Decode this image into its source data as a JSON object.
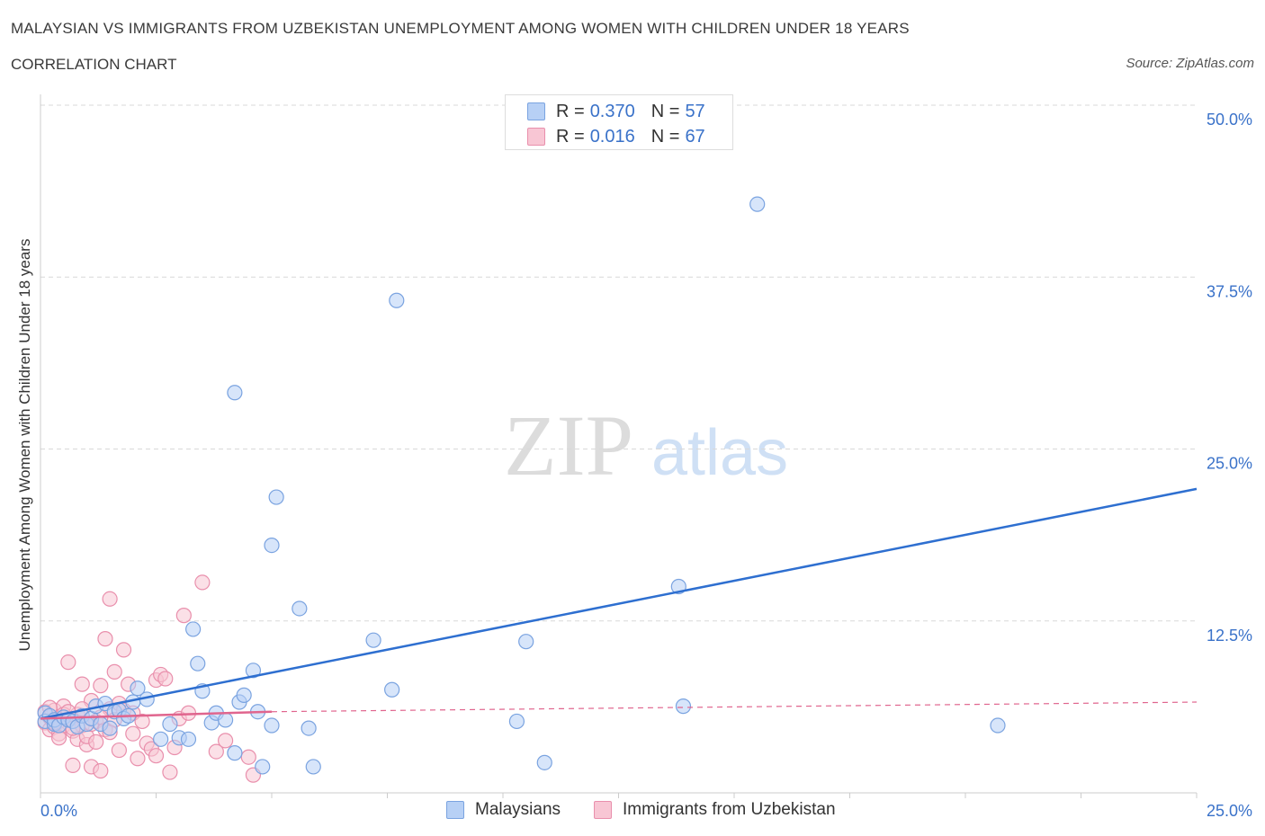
{
  "header": {
    "title": "MALAYSIAN VS IMMIGRANTS FROM UZBEKISTAN UNEMPLOYMENT AMONG WOMEN WITH CHILDREN UNDER 18 YEARS",
    "subtitle": "CORRELATION CHART",
    "source": "Source: ZipAtlas.com"
  },
  "watermark": {
    "zip": "ZIP",
    "atlas": "atlas"
  },
  "colors": {
    "blue_fill": "#b7d0f5",
    "blue_stroke": "#7aa3e0",
    "blue_line": "#2e6fd0",
    "pink_fill": "#f8c6d4",
    "pink_stroke": "#e98fac",
    "pink_line": "#e0658e",
    "axis_text": "#3a72c9",
    "grid": "#d8d8d8"
  },
  "legend_top": {
    "rows": [
      {
        "label": "R =",
        "r": "0.370",
        "n_label": "N =",
        "n": "57"
      },
      {
        "label": "R =",
        "r": "0.016",
        "n_label": "N =",
        "n": "67"
      }
    ]
  },
  "legend_bottom": [
    "Malaysians",
    "Immigrants from Uzbekistan"
  ],
  "chart_data": {
    "type": "scatter",
    "title": "MALAYSIAN VS IMMIGRANTS FROM UZBEKISTAN UNEMPLOYMENT AMONG WOMEN WITH CHILDREN UNDER 18 YEARS",
    "xlabel": "",
    "ylabel": "Unemployment Among Women with Children Under 18 years",
    "xlim": [
      0,
      25
    ],
    "ylim": [
      0,
      50
    ],
    "x_tick_labels": [
      "0.0%",
      "25.0%"
    ],
    "y_tick_labels": [
      "12.5%",
      "25.0%",
      "37.5%",
      "50.0%"
    ],
    "y_ticks": [
      12.5,
      25,
      37.5,
      50
    ],
    "grid": true,
    "legend_position": "top-center",
    "series": [
      {
        "name": "Malaysians",
        "r": 0.37,
        "n": 57,
        "trend": {
          "x": [
            0,
            25
          ],
          "y": [
            5.4,
            22.1
          ]
        },
        "points": [
          [
            0.1,
            5.8
          ],
          [
            0.1,
            5.2
          ],
          [
            0.2,
            5.6
          ],
          [
            0.3,
            5.0
          ],
          [
            0.3,
            5.3
          ],
          [
            0.4,
            4.9
          ],
          [
            0.5,
            5.5
          ],
          [
            0.6,
            5.3
          ],
          [
            0.7,
            5.2
          ],
          [
            0.8,
            4.8
          ],
          [
            0.9,
            5.6
          ],
          [
            1.0,
            5.0
          ],
          [
            1.1,
            5.4
          ],
          [
            1.2,
            6.3
          ],
          [
            1.3,
            5.0
          ],
          [
            1.4,
            6.5
          ],
          [
            1.5,
            4.7
          ],
          [
            1.6,
            5.9
          ],
          [
            1.7,
            6.0
          ],
          [
            1.8,
            5.4
          ],
          [
            1.9,
            5.6
          ],
          [
            2.0,
            6.6
          ],
          [
            2.1,
            7.6
          ],
          [
            2.3,
            6.8
          ],
          [
            2.6,
            3.9
          ],
          [
            2.8,
            5.0
          ],
          [
            3.0,
            4.0
          ],
          [
            3.2,
            3.9
          ],
          [
            3.4,
            9.4
          ],
          [
            3.3,
            11.9
          ],
          [
            3.5,
            7.4
          ],
          [
            3.7,
            5.1
          ],
          [
            3.8,
            5.8
          ],
          [
            4.0,
            5.3
          ],
          [
            4.2,
            2.9
          ],
          [
            4.3,
            6.6
          ],
          [
            4.4,
            7.1
          ],
          [
            4.6,
            8.9
          ],
          [
            4.7,
            5.9
          ],
          [
            4.8,
            1.9
          ],
          [
            5.0,
            4.9
          ],
          [
            4.2,
            29.1
          ],
          [
            5.1,
            21.5
          ],
          [
            5.0,
            18.0
          ],
          [
            5.6,
            13.4
          ],
          [
            5.8,
            4.7
          ],
          [
            5.9,
            1.9
          ],
          [
            7.7,
            35.8
          ],
          [
            7.2,
            11.1
          ],
          [
            7.6,
            7.5
          ],
          [
            10.3,
            5.2
          ],
          [
            10.5,
            11.0
          ],
          [
            10.9,
            2.2
          ],
          [
            13.8,
            15.0
          ],
          [
            13.9,
            6.3
          ],
          [
            15.5,
            42.8
          ],
          [
            20.7,
            4.9
          ]
        ]
      },
      {
        "name": "Immigrants from Uzbekistan",
        "r": 0.016,
        "n": 67,
        "trend": {
          "x": [
            0,
            5
          ],
          "y": [
            5.4,
            5.9
          ],
          "dashed_to": {
            "x": 25,
            "y": 6.6
          }
        },
        "points": [
          [
            0.1,
            5.9
          ],
          [
            0.1,
            5.1
          ],
          [
            0.2,
            4.6
          ],
          [
            0.2,
            5.5
          ],
          [
            0.3,
            4.8
          ],
          [
            0.3,
            6.0
          ],
          [
            0.4,
            5.2
          ],
          [
            0.4,
            4.3
          ],
          [
            0.5,
            6.3
          ],
          [
            0.5,
            4.9
          ],
          [
            0.6,
            5.4
          ],
          [
            0.6,
            9.5
          ],
          [
            0.7,
            4.5
          ],
          [
            0.7,
            2.0
          ],
          [
            0.8,
            5.7
          ],
          [
            0.8,
            3.9
          ],
          [
            0.9,
            4.9
          ],
          [
            0.9,
            7.9
          ],
          [
            1.0,
            3.5
          ],
          [
            1.0,
            4.1
          ],
          [
            1.1,
            6.7
          ],
          [
            1.1,
            1.9
          ],
          [
            1.2,
            5.2
          ],
          [
            1.2,
            3.7
          ],
          [
            1.3,
            7.8
          ],
          [
            1.3,
            1.6
          ],
          [
            1.4,
            11.2
          ],
          [
            1.4,
            4.6
          ],
          [
            1.5,
            6.1
          ],
          [
            1.5,
            14.1
          ],
          [
            1.6,
            8.8
          ],
          [
            1.6,
            5.3
          ],
          [
            1.7,
            6.5
          ],
          [
            1.7,
            3.1
          ],
          [
            1.8,
            10.4
          ],
          [
            1.8,
            6.0
          ],
          [
            1.9,
            7.9
          ],
          [
            2.0,
            4.3
          ],
          [
            2.0,
            5.8
          ],
          [
            2.1,
            2.5
          ],
          [
            2.2,
            5.2
          ],
          [
            2.3,
            3.6
          ],
          [
            2.4,
            3.2
          ],
          [
            2.5,
            2.7
          ],
          [
            2.5,
            8.2
          ],
          [
            2.6,
            8.6
          ],
          [
            2.7,
            8.3
          ],
          [
            2.8,
            1.5
          ],
          [
            2.9,
            3.3
          ],
          [
            3.0,
            5.4
          ],
          [
            3.1,
            12.9
          ],
          [
            3.2,
            5.8
          ],
          [
            3.5,
            15.3
          ],
          [
            3.8,
            3.0
          ],
          [
            4.0,
            3.8
          ],
          [
            4.5,
            2.6
          ],
          [
            4.6,
            1.3
          ],
          [
            0.3,
            5.1
          ],
          [
            0.5,
            5.7
          ],
          [
            0.7,
            4.7
          ],
          [
            0.9,
            6.1
          ],
          [
            1.1,
            5.0
          ],
          [
            1.3,
            5.5
          ],
          [
            1.5,
            4.4
          ],
          [
            0.2,
            6.2
          ],
          [
            0.4,
            4.0
          ],
          [
            0.6,
            5.9
          ]
        ]
      }
    ]
  }
}
